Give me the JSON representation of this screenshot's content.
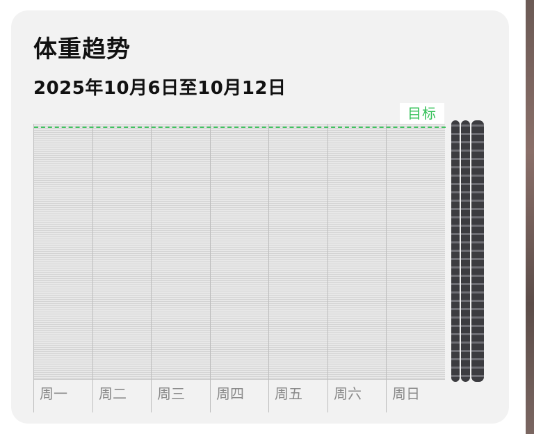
{
  "card": {
    "title": "体重趋势",
    "date_range": "2025年10月6日至10月12日",
    "goal_label": "目标",
    "goal_color": "#3ec45e"
  },
  "chart_data": {
    "type": "line",
    "title": "体重趋势",
    "subtitle": "2025年10月6日至10月12日",
    "categories": [
      "周一",
      "周二",
      "周三",
      "周四",
      "周五",
      "周六",
      "周日"
    ],
    "series": [],
    "reference_lines": [
      {
        "label": "目标",
        "style": "dashed",
        "color": "#3ec45e"
      }
    ],
    "grid": true
  }
}
